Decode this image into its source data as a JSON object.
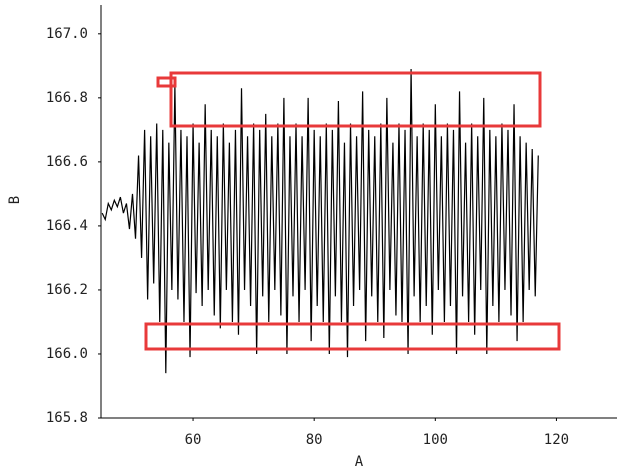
{
  "chart_data": {
    "type": "line",
    "xlabel": "A",
    "ylabel": "B",
    "color": "#000000",
    "xlim": [
      44.8,
      130
    ],
    "ylim": [
      165.8,
      167.09
    ],
    "xticks": [
      60,
      80,
      100,
      120
    ],
    "yticks": [
      {
        "value": 165.8,
        "label": "165.8"
      },
      {
        "value": 166.0,
        "label": "166.0"
      },
      166.2,
      166.4,
      166.6,
      166.8,
      {
        "value": 167.0,
        "label": "167.0"
      }
    ],
    "x": [
      45,
      45.5,
      46,
      46.5,
      47,
      47.5,
      48,
      48.5,
      49,
      49.5,
      50,
      50.5,
      51,
      51.5,
      52,
      52.5,
      53,
      53.5,
      54,
      54.5,
      55,
      55.5,
      56,
      56.5,
      57,
      57.5,
      58,
      58.5,
      59,
      59.5,
      60,
      60.5,
      61,
      61.5,
      62,
      62.5,
      63,
      63.5,
      64,
      64.5,
      65,
      65.5,
      66,
      66.5,
      67,
      67.5,
      68,
      68.5,
      69,
      69.5,
      70,
      70.5,
      71,
      71.5,
      72,
      72.5,
      73,
      73.5,
      74,
      74.5,
      75,
      75.5,
      76,
      76.5,
      77,
      77.5,
      78,
      78.5,
      79,
      79.5,
      80,
      80.5,
      81,
      81.5,
      82,
      82.5,
      83,
      83.5,
      84,
      84.5,
      85,
      85.5,
      86,
      86.5,
      87,
      87.5,
      88,
      88.5,
      89,
      89.5,
      90,
      90.5,
      91,
      91.5,
      92,
      92.5,
      93,
      93.5,
      94,
      94.5,
      95,
      95.5,
      96,
      96.5,
      97,
      97.5,
      98,
      98.5,
      99,
      99.5,
      100,
      100.5,
      101,
      101.5,
      102,
      102.5,
      103,
      103.5,
      104,
      104.5,
      105,
      105.5,
      106,
      106.5,
      107,
      107.5,
      108,
      108.5,
      109,
      109.5,
      110,
      110.5,
      111,
      111.5,
      112,
      112.5,
      113,
      113.5,
      114,
      114.5,
      115,
      115.5,
      116,
      116.5,
      117
    ],
    "values": [
      166.44,
      166.42,
      166.47,
      166.45,
      166.48,
      166.46,
      166.49,
      166.44,
      166.47,
      166.39,
      166.5,
      166.36,
      166.62,
      166.3,
      166.7,
      166.17,
      166.68,
      166.22,
      166.72,
      166.1,
      166.7,
      165.94,
      166.66,
      166.2,
      166.84,
      166.17,
      166.7,
      166.1,
      166.68,
      165.99,
      166.72,
      166.19,
      166.66,
      166.15,
      166.78,
      166.2,
      166.7,
      166.12,
      166.68,
      166.08,
      166.72,
      166.2,
      166.66,
      166.1,
      166.7,
      166.06,
      166.83,
      166.2,
      166.68,
      166.15,
      166.72,
      166.0,
      166.7,
      166.18,
      166.75,
      166.1,
      166.68,
      166.2,
      166.72,
      166.12,
      166.8,
      166.0,
      166.68,
      166.18,
      166.72,
      166.1,
      166.68,
      166.2,
      166.8,
      166.04,
      166.7,
      166.15,
      166.68,
      166.1,
      166.72,
      166.0,
      166.7,
      166.18,
      166.79,
      166.1,
      166.66,
      165.99,
      166.72,
      166.15,
      166.68,
      166.2,
      166.82,
      166.04,
      166.7,
      166.18,
      166.68,
      166.1,
      166.72,
      166.05,
      166.8,
      166.2,
      166.66,
      166.12,
      166.72,
      166.1,
      166.7,
      166.0,
      166.89,
      166.18,
      166.68,
      166.1,
      166.72,
      166.15,
      166.7,
      166.06,
      166.78,
      166.2,
      166.68,
      166.1,
      166.72,
      166.15,
      166.7,
      166.0,
      166.82,
      166.18,
      166.66,
      166.1,
      166.72,
      166.06,
      166.68,
      166.2,
      166.8,
      166.0,
      166.7,
      166.15,
      166.68,
      166.1,
      166.72,
      166.2,
      166.7,
      166.12,
      166.78,
      166.04,
      166.68,
      166.1,
      166.66,
      166.2,
      166.64,
      166.18,
      166.62
    ]
  }
}
